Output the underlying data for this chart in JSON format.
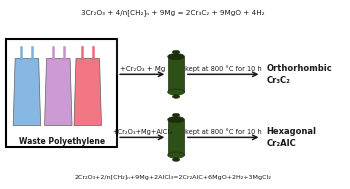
{
  "top_equation": "3Cr₂O₃ + 4/n[CH₂]ₙ + 9Mg = 2Cr₃C₂ + 9MgO + 4H₂",
  "bottom_equation": "2Cr₂O₃+2/n[CH₂]ₙ+9Mg+2AlCl₃=2Cr₂AlC+6MgO+2H₂+3MgCl₂",
  "box_label": "Waste Polyethylene",
  "top_arrow_label1": "+Cr₂O₃ + Mg",
  "top_arrow_label2": "kept at 800 °C for 10 h",
  "bottom_arrow_label1": "+Cr₂O₃+Mg+AlCl₃",
  "bottom_arrow_label2": "kept at 800 °C for 10 h",
  "top_product": "Orthorhombic\nCr₃C₂",
  "bottom_product": "Hexagonal\nCr₂AlC",
  "bg_color": "#ffffff",
  "text_color": "#1a1a1a",
  "arrow_color": "#1a1a1a",
  "cylinder_color": "#2d5016",
  "cylinder_dark": "#1a3008",
  "box_colors": [
    "#7ab0e0",
    "#c890d0",
    "#f06878"
  ],
  "product_bold": true
}
